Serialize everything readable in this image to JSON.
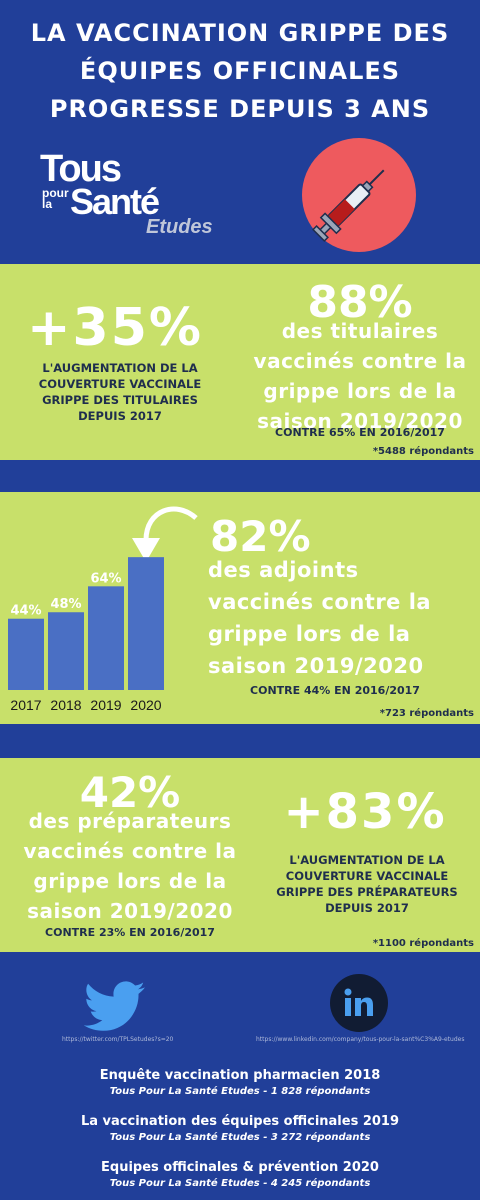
{
  "title": {
    "line1": "LA VACCINATION GRIPPE DES",
    "line2": "ÉQUIPES OFFICINALES",
    "line3": "PROGRESSE DEPUIS 3 ANS"
  },
  "logo": {
    "tous": "Tous",
    "pour_la": "pour\nla",
    "sante": "Santé",
    "etudes": "Etudes"
  },
  "section_titulaires": {
    "left_big": "+35%",
    "left_text": "L'AUGMENTATION DE LA COUVERTURE VACCINALE GRIPPE DES TITULAIRES DEPUIS 2017",
    "right_big": "88%",
    "right_text_1": "des titulaires",
    "right_text_2": "vaccinés contre la",
    "right_text_3": "grippe lors de la",
    "right_text_4": "saison 2019/2020",
    "contre": "CONTRE 65% EN 2016/2017",
    "respondents": "*5488 répondants"
  },
  "section_adjoints": {
    "big": "82%",
    "text_1": "des adjoints",
    "text_2": "vaccinés contre la",
    "text_3": "grippe lors de la",
    "text_4": "saison 2019/2020",
    "contre": "CONTRE 44% EN 2016/2017",
    "respondents": "*723 répondants"
  },
  "chart_data": {
    "type": "bar",
    "categories": [
      "2017",
      "2018",
      "2019",
      "2020"
    ],
    "values": [
      44,
      48,
      64,
      82
    ],
    "value_labels": [
      "44%",
      "48%",
      "64%",
      ""
    ],
    "color": "#4a6fc4",
    "ylim": [
      0,
      100
    ]
  },
  "section_preparateurs": {
    "big": "42%",
    "text_1": "des préparateurs",
    "text_2": "vaccinés contre la",
    "text_3": "grippe lors de la",
    "text_4": "saison 2019/2020",
    "contre": "CONTRE 23% EN 2016/2017",
    "right_big": "+83%",
    "right_text": "L'AUGMENTATION DE LA COUVERTURE VACCINALE GRIPPE DES PRÉPARATEURS DEPUIS 2017",
    "respondents": "*1100 répondants"
  },
  "social": {
    "twitter_icon": "twitter-bird-icon",
    "twitter_url": "https://twitter.com/TPLSetudes?s=20",
    "linkedin_icon": "linkedin-icon",
    "linkedin_url": "https://www.linkedin.com/company/tous-pour-la-sant%C3%A9-etudes"
  },
  "surveys": [
    {
      "title": "Enquête vaccination pharmacien 2018",
      "subtitle": "Tous Pour La Santé Etudes - 1 828 répondants"
    },
    {
      "title": "La vaccination des équipes officinales 2019",
      "subtitle": "Tous Pour La Santé Etudes - 3 272 répondants"
    },
    {
      "title": "Equipes officinales & prévention 2020",
      "subtitle": "Tous Pour La Santé Etudes - 4 245 répondants"
    }
  ],
  "colors": {
    "background": "#213f99",
    "band": "#c8e06a",
    "accent_red": "#ee5a5e",
    "bar": "#4a6fc4"
  }
}
